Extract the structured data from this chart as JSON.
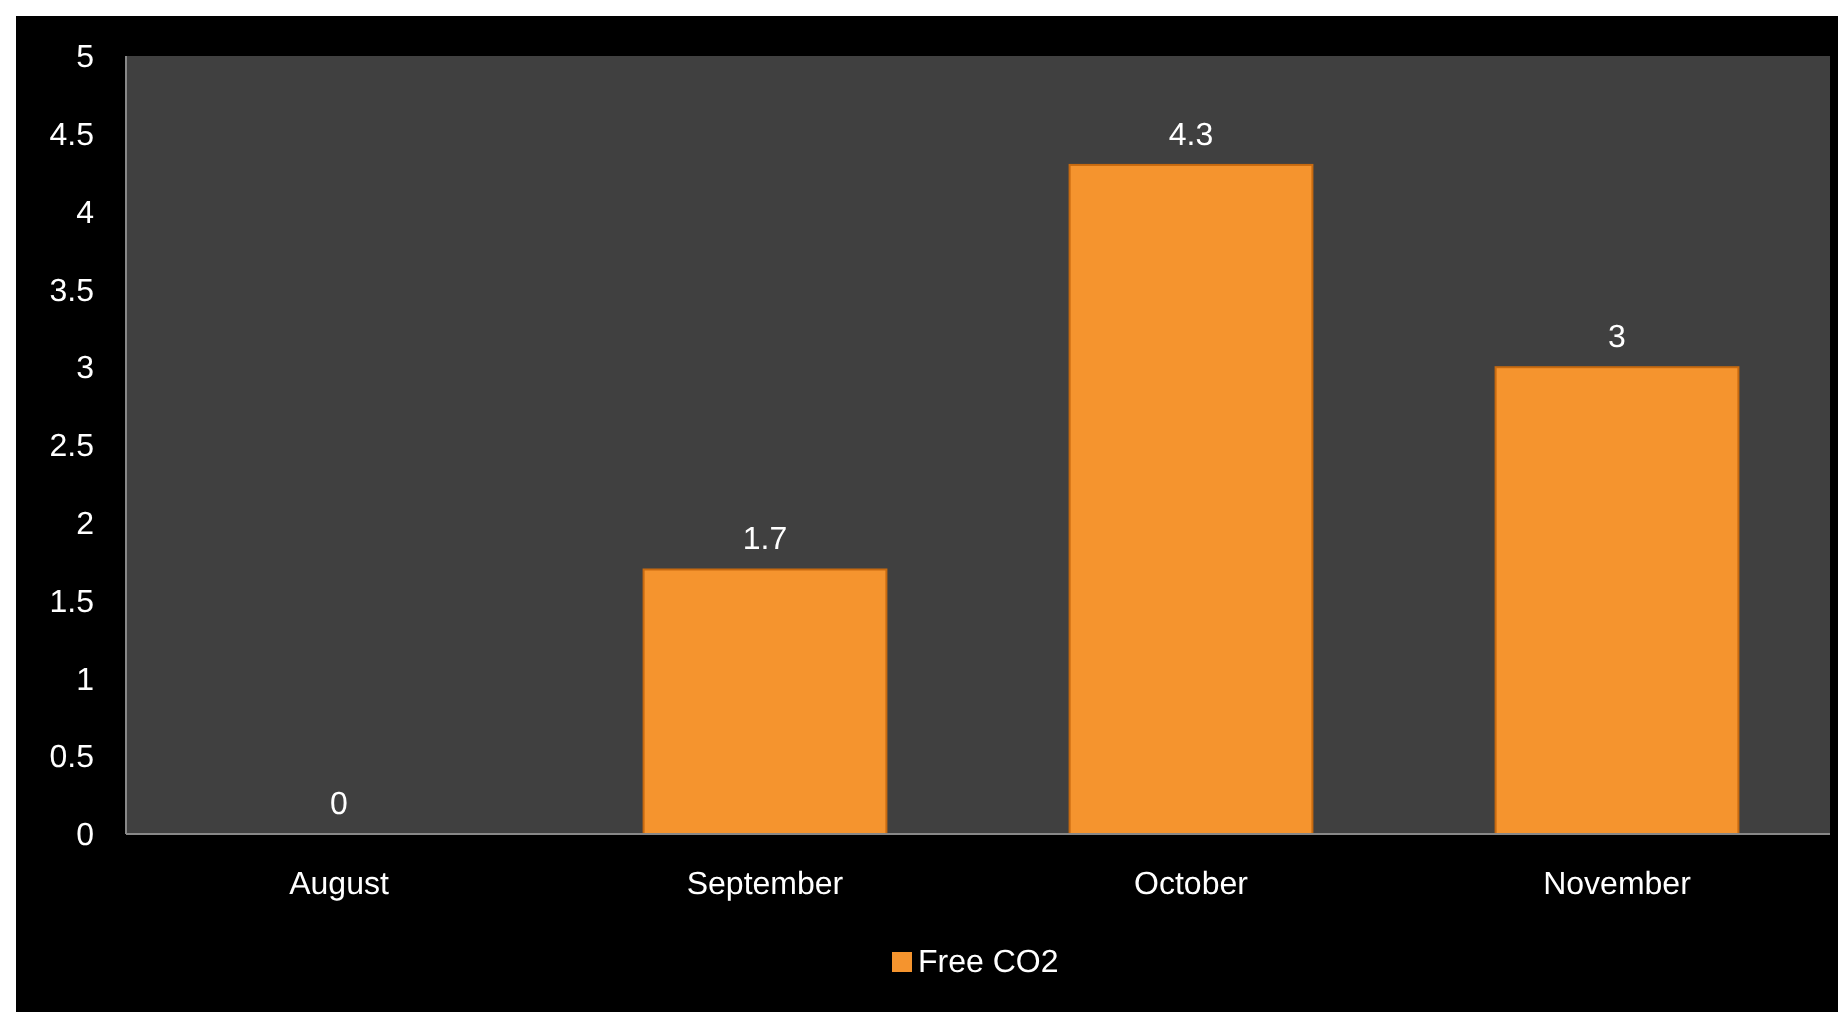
{
  "chart_data": {
    "type": "bar",
    "categories": [
      "August",
      "September",
      "October",
      "November"
    ],
    "series": [
      {
        "name": "Free CO2",
        "color": "#f5942e",
        "values": [
          0,
          1.7,
          4.3,
          3
        ]
      }
    ],
    "ylim": [
      0,
      5
    ],
    "yticks": [
      0,
      0.5,
      1,
      1.5,
      2,
      2.5,
      3,
      3.5,
      4,
      4.5,
      5
    ],
    "grid": false,
    "data_labels": true,
    "legend": "bottom"
  }
}
